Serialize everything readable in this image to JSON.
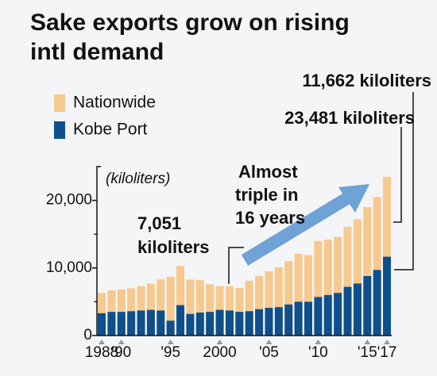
{
  "chart_data": {
    "type": "bar",
    "overlap": true,
    "title": [
      "Sake exports grow on rising",
      "intl demand"
    ],
    "y_label": "(kiloliters)",
    "annotations": [
      [
        "7,051",
        "kiloliters"
      ],
      [
        "Almost",
        "triple in",
        "16 years"
      ],
      "11,662 kiloliters",
      "23,481 kiloliters"
    ],
    "categories": [
      "1988",
      null,
      "'90",
      null,
      null,
      null,
      null,
      "'95",
      null,
      null,
      null,
      null,
      "2000",
      null,
      null,
      null,
      null,
      "'05",
      null,
      null,
      null,
      null,
      "'10",
      null,
      null,
      null,
      null,
      "'15",
      null,
      "'17"
    ],
    "series": [
      {
        "name": "Nationwide",
        "color": "#f7c98e",
        "values": [
          6300,
          6700,
          6800,
          7000,
          7300,
          7700,
          8300,
          8700,
          10300,
          8300,
          8200,
          7600,
          7300,
          7300,
          7051,
          8100,
          8800,
          9500,
          10100,
          11000,
          12100,
          11900,
          14000,
          14200,
          14600,
          16100,
          17200,
          19000,
          20500,
          23481
        ]
      },
      {
        "name": "Kobe Port",
        "color": "#0f4f8c",
        "values": [
          3300,
          3500,
          3500,
          3600,
          3700,
          3800,
          3700,
          2200,
          4500,
          3200,
          3400,
          3500,
          3800,
          3700,
          3500,
          3600,
          3900,
          4100,
          4200,
          4600,
          5000,
          5000,
          5700,
          6000,
          6300,
          7200,
          7700,
          8800,
          9700,
          11662
        ]
      }
    ],
    "ylim": [
      0,
      25000
    ],
    "yticks": [
      0,
      {
        "value": 10000,
        "label": "10,000"
      },
      {
        "value": 20000,
        "label": "20,000"
      }
    ]
  }
}
